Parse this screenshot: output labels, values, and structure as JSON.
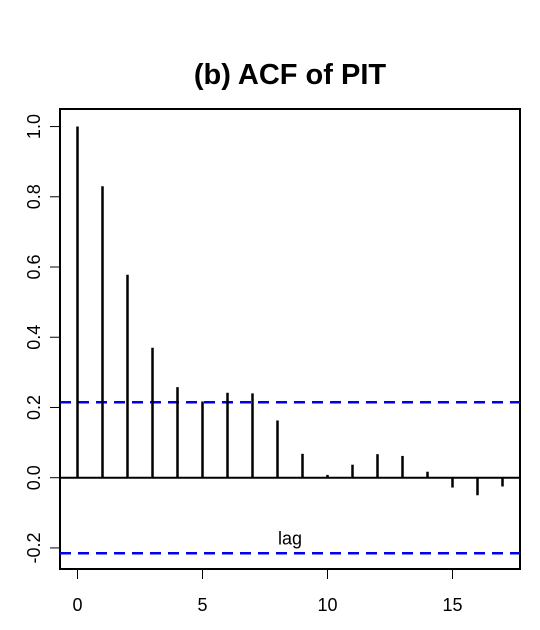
{
  "chart_data": {
    "type": "bar",
    "title": "(b) ACF of PIT",
    "xlabel": "",
    "ylabel": "",
    "x": [
      0,
      1,
      2,
      3,
      4,
      5,
      6,
      7,
      8,
      9,
      10,
      11,
      12,
      13,
      14,
      15,
      16,
      17
    ],
    "values": [
      1.0,
      0.83,
      0.578,
      0.37,
      0.258,
      0.217,
      0.242,
      0.24,
      0.163,
      0.068,
      0.008,
      0.037,
      0.067,
      0.062,
      0.017,
      -0.028,
      -0.05,
      -0.025
    ],
    "confidence_bound": 0.215,
    "confidence_bound_color": "#0000ee",
    "bar_color": "#000000",
    "zero_line": true,
    "xlim": [
      -0.7,
      17.7
    ],
    "ylim": [
      -0.26,
      1.05
    ],
    "x_ticks": [
      "0",
      "5",
      "10",
      "15"
    ],
    "y_ticks": [
      "-0.2",
      "0.0",
      "0.2",
      "0.4",
      "0.6",
      "0.8",
      "1.0"
    ],
    "annotations": [
      {
        "text": "lag",
        "x": 8.5,
        "y": -0.19
      }
    ]
  }
}
